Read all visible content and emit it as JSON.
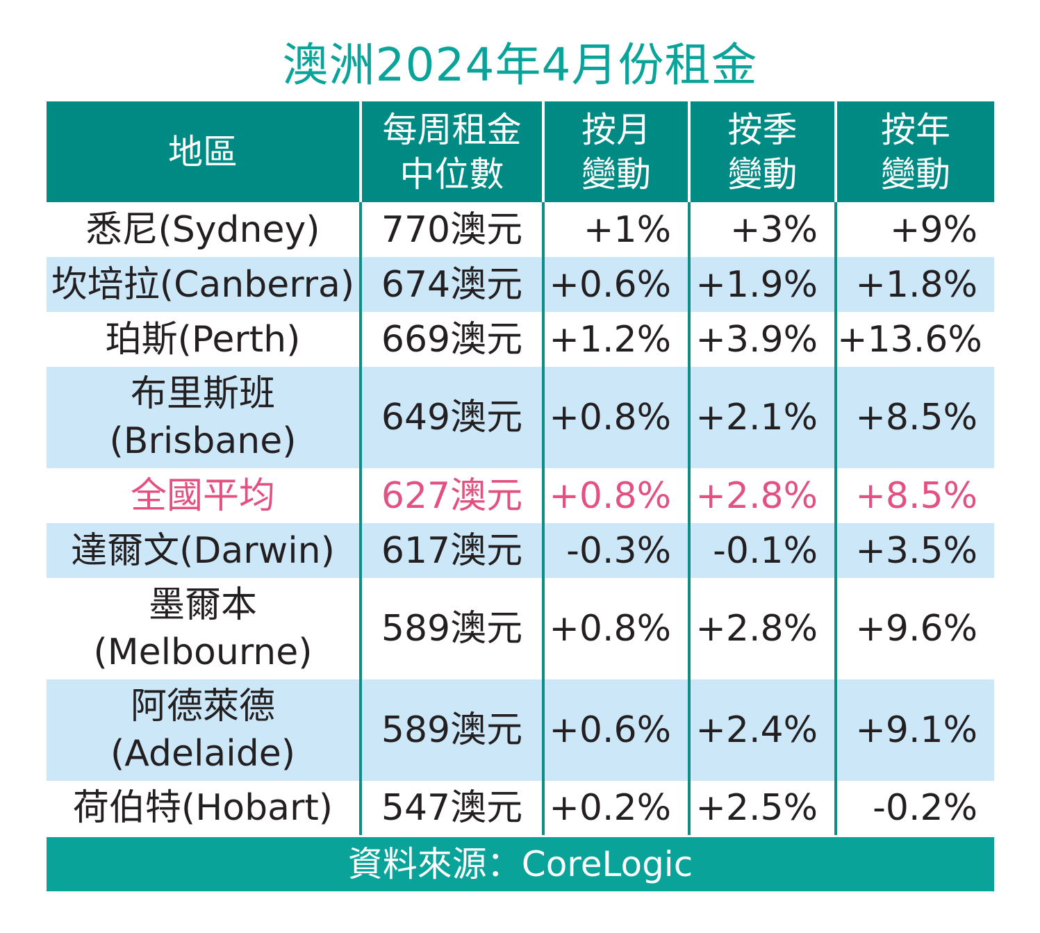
{
  "title": "澳洲2024年4月份租金",
  "headers": {
    "region": "地區",
    "rent_line1": "每周租金",
    "rent_line2": "中位數",
    "mom_line1": "按月",
    "mom_line2": "變動",
    "qoq_line1": "按季",
    "qoq_line2": "變動",
    "yoy_line1": "按年",
    "yoy_line2": "變動"
  },
  "rows": [
    {
      "region_line1": "悉尼(Sydney)",
      "region_line2": "",
      "rent": "770澳元",
      "mom": "+1%",
      "qoq": "+3%",
      "yoy": "+9%"
    },
    {
      "region_line1": "坎培拉(Canberra)",
      "region_line2": "",
      "rent": "674澳元",
      "mom": "+0.6%",
      "qoq": "+1.9%",
      "yoy": "+1.8%"
    },
    {
      "region_line1": "珀斯(Perth)",
      "region_line2": "",
      "rent": "669澳元",
      "mom": "+1.2%",
      "qoq": "+3.9%",
      "yoy": "+13.6%"
    },
    {
      "region_line1": "布里斯班",
      "region_line2": "(Brisbane)",
      "rent": "649澳元",
      "mom": "+0.8%",
      "qoq": "+2.1%",
      "yoy": "+8.5%"
    },
    {
      "region_line1": "全國平均",
      "region_line2": "",
      "rent": "627澳元",
      "mom": "+0.8%",
      "qoq": "+2.8%",
      "yoy": "+8.5%"
    },
    {
      "region_line1": "達爾文(Darwin)",
      "region_line2": "",
      "rent": "617澳元",
      "mom": "-0.3%",
      "qoq": "-0.1%",
      "yoy": "+3.5%"
    },
    {
      "region_line1": "墨爾本",
      "region_line2": "(Melbourne)",
      "rent": "589澳元",
      "mom": "+0.8%",
      "qoq": "+2.8%",
      "yoy": "+9.6%"
    },
    {
      "region_line1": "阿德萊德",
      "region_line2": "(Adelaide)",
      "rent": "589澳元",
      "mom": "+0.6%",
      "qoq": "+2.4%",
      "yoy": "+9.1%"
    },
    {
      "region_line1": "荷伯特(Hobart)",
      "region_line2": "",
      "rent": "547澳元",
      "mom": "+0.2%",
      "qoq": "+2.5%",
      "yoy": "-0.2%"
    }
  ],
  "source": "資料來源：CoreLogic",
  "chart_data": {
    "type": "table",
    "title": "澳洲2024年4月份租金",
    "columns": [
      "地區",
      "每周租金中位數",
      "按月變動",
      "按季變動",
      "按年變動"
    ],
    "rows": [
      [
        "悉尼(Sydney)",
        "770澳元",
        "+1%",
        "+3%",
        "+9%"
      ],
      [
        "坎培拉(Canberra)",
        "674澳元",
        "+0.6%",
        "+1.9%",
        "+1.8%"
      ],
      [
        "珀斯(Perth)",
        "669澳元",
        "+1.2%",
        "+3.9%",
        "+13.6%"
      ],
      [
        "布里斯班(Brisbane)",
        "649澳元",
        "+0.8%",
        "+2.1%",
        "+8.5%"
      ],
      [
        "全國平均",
        "627澳元",
        "+0.8%",
        "+2.8%",
        "+8.5%"
      ],
      [
        "達爾文(Darwin)",
        "617澳元",
        "-0.3%",
        "-0.1%",
        "+3.5%"
      ],
      [
        "墨爾本(Melbourne)",
        "589澳元",
        "+0.8%",
        "+2.8%",
        "+9.6%"
      ],
      [
        "阿德萊德(Adelaide)",
        "589澳元",
        "+0.6%",
        "+2.4%",
        "+9.1%"
      ],
      [
        "荷伯特(Hobart)",
        "547澳元",
        "+0.2%",
        "+2.5%",
        "-0.2%"
      ]
    ],
    "weekly_rent_aud": [
      770,
      674,
      669,
      649,
      627,
      617,
      589,
      589,
      547
    ],
    "monthly_change_pct": [
      1,
      0.6,
      1.2,
      0.8,
      0.8,
      -0.3,
      0.8,
      0.6,
      0.2
    ],
    "quarterly_change_pct": [
      3,
      1.9,
      3.9,
      2.1,
      2.8,
      -0.1,
      2.8,
      2.4,
      2.5
    ],
    "annual_change_pct": [
      9,
      1.8,
      13.6,
      8.5,
      8.5,
      3.5,
      9.6,
      9.1,
      -0.2
    ],
    "highlight_color": "#e2517f",
    "header_color": "#008a84",
    "title_color": "#0aa39a",
    "shade_color": "#cbe7f8"
  }
}
